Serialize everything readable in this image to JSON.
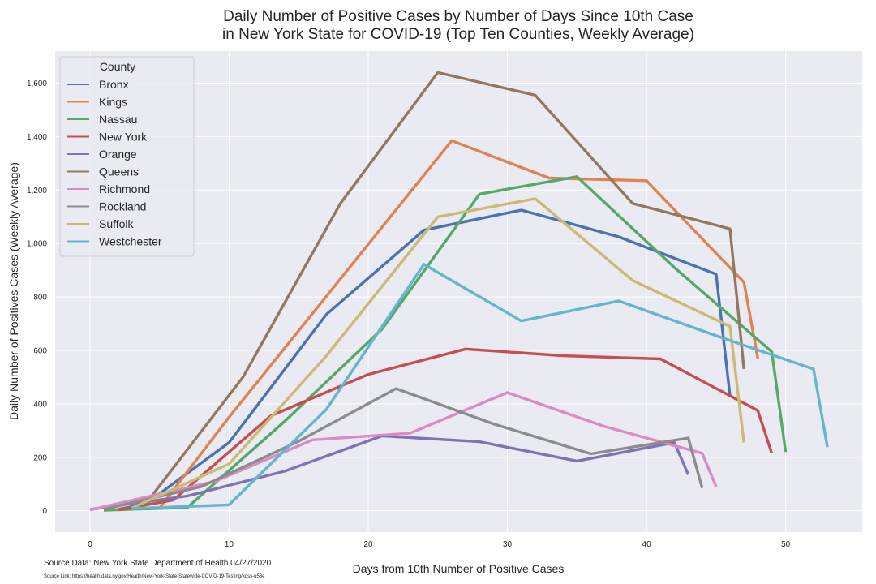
{
  "chart_data": {
    "type": "line",
    "title_lines": [
      "Daily Number of Positive Cases by Number of Days Since 10th Case",
      "in New York State for COVID-19 (Top Ten Counties, Weekly Average)"
    ],
    "xlabel": "Days from 10th Number of Positive Cases",
    "ylabel": "Daily Number of Positives Cases (Weekly Average)",
    "xlim": [
      -2.5,
      55.5
    ],
    "ylim": [
      -80,
      1720
    ],
    "xticks": [
      0,
      10,
      20,
      30,
      40,
      50
    ],
    "yticks": [
      0,
      200,
      400,
      600,
      800,
      1000,
      1200,
      1400,
      1600
    ],
    "ytick_labels": [
      "0",
      "200",
      "400",
      "600",
      "800",
      "1,000",
      "1,200",
      "1,400",
      "1,600"
    ],
    "grid": true,
    "legend": {
      "title": "County",
      "placement": "top-left"
    },
    "series": [
      {
        "name": "Bronx",
        "color": "#4c72b0",
        "points": [
          [
            2,
            5
          ],
          [
            4,
            25
          ],
          [
            10,
            255
          ],
          [
            17,
            735
          ],
          [
            24,
            1050
          ],
          [
            31,
            1125
          ],
          [
            38,
            1025
          ],
          [
            45,
            885
          ],
          [
            46,
            430
          ]
        ]
      },
      {
        "name": "Kings",
        "color": "#dd8452",
        "points": [
          [
            2,
            5
          ],
          [
            5,
            10
          ],
          [
            10,
            350
          ],
          [
            26,
            1385
          ],
          [
            33,
            1245
          ],
          [
            40,
            1235
          ],
          [
            47,
            855
          ],
          [
            48,
            570
          ]
        ]
      },
      {
        "name": "Nassau",
        "color": "#55a868",
        "points": [
          [
            1,
            2
          ],
          [
            7,
            12
          ],
          [
            14,
            335
          ],
          [
            21,
            680
          ],
          [
            28,
            1185
          ],
          [
            35,
            1250
          ],
          [
            42,
            910
          ],
          [
            49,
            595
          ],
          [
            50,
            220
          ]
        ]
      },
      {
        "name": "New York",
        "color": "#c44e52",
        "points": [
          [
            2,
            3
          ],
          [
            6,
            40
          ],
          [
            13,
            355
          ],
          [
            20,
            510
          ],
          [
            27,
            605
          ],
          [
            34,
            580
          ],
          [
            41,
            568
          ],
          [
            48,
            375
          ],
          [
            49,
            215
          ]
        ]
      },
      {
        "name": "Orange",
        "color": "#8172b3",
        "points": [
          [
            0,
            5
          ],
          [
            7,
            55
          ],
          [
            14,
            148
          ],
          [
            21,
            280
          ],
          [
            28,
            258
          ],
          [
            35,
            186
          ],
          [
            42,
            255
          ],
          [
            43,
            135
          ]
        ]
      },
      {
        "name": "Queens",
        "color": "#937860",
        "points": [
          [
            4,
            25
          ],
          [
            11,
            500
          ],
          [
            18,
            1150
          ],
          [
            25,
            1640
          ],
          [
            32,
            1555
          ],
          [
            39,
            1150
          ],
          [
            46,
            1055
          ],
          [
            47,
            530
          ]
        ]
      },
      {
        "name": "Richmond",
        "color": "#da8bc3",
        "points": [
          [
            0,
            3
          ],
          [
            9,
            110
          ],
          [
            16,
            265
          ],
          [
            23,
            290
          ],
          [
            30,
            442
          ],
          [
            37,
            315
          ],
          [
            44,
            215
          ],
          [
            45,
            90
          ]
        ]
      },
      {
        "name": "Rockland",
        "color": "#8c8c8c",
        "points": [
          [
            1,
            5
          ],
          [
            8,
            90
          ],
          [
            15,
            260
          ],
          [
            22,
            457
          ],
          [
            29,
            325
          ],
          [
            36,
            213
          ],
          [
            43,
            272
          ],
          [
            44,
            85
          ]
        ]
      },
      {
        "name": "Suffolk",
        "color": "#ccb974",
        "points": [
          [
            3,
            10
          ],
          [
            10,
            175
          ],
          [
            17,
            580
          ],
          [
            25,
            1100
          ],
          [
            32,
            1168
          ],
          [
            39,
            862
          ],
          [
            46,
            690
          ],
          [
            47,
            255
          ]
        ]
      },
      {
        "name": "Westchester",
        "color": "#64b5cd",
        "points": [
          [
            3,
            8
          ],
          [
            10,
            22
          ],
          [
            17,
            380
          ],
          [
            24,
            922
          ],
          [
            31,
            710
          ],
          [
            38,
            785
          ],
          [
            45,
            655
          ],
          [
            52,
            530
          ],
          [
            53,
            238
          ]
        ]
      }
    ]
  },
  "footer": {
    "source_data": "Source Data: New York State Department of Health 04/27/2020",
    "source_link": "Source Link: https://health.data.ny.gov/Health/New-York-State-Statewide-COVID-19-Testing/xdss-u53e"
  }
}
